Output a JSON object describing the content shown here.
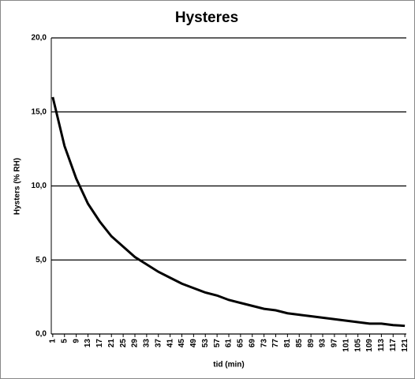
{
  "chart_data": {
    "type": "line",
    "title": "Hysteres",
    "xlabel": "tid (min)",
    "ylabel": "Hysters  (% RH)",
    "x": [
      1,
      5,
      9,
      13,
      17,
      21,
      25,
      29,
      33,
      37,
      41,
      45,
      49,
      53,
      57,
      61,
      65,
      69,
      73,
      77,
      81,
      85,
      89,
      93,
      97,
      101,
      105,
      109,
      113,
      117,
      121
    ],
    "series": [
      {
        "name": "Hysteres",
        "color": "#000000",
        "values": [
          16,
          12.7,
          10.5,
          8.8,
          7.6,
          6.6,
          5.9,
          5.2,
          4.7,
          4.2,
          3.8,
          3.4,
          3.1,
          2.8,
          2.6,
          2.3,
          2.1,
          1.9,
          1.7,
          1.6,
          1.4,
          1.3,
          1.2,
          1.1,
          1.0,
          0.9,
          0.8,
          0.7,
          0.7,
          0.6,
          0.55
        ]
      }
    ],
    "xlim": [
      0.5,
      121.5
    ],
    "xticks": [
      1,
      5,
      9,
      13,
      17,
      21,
      25,
      29,
      33,
      37,
      41,
      45,
      49,
      53,
      57,
      61,
      65,
      69,
      73,
      77,
      81,
      85,
      89,
      93,
      97,
      101,
      105,
      109,
      113,
      117,
      121
    ],
    "ylim": [
      0,
      20
    ],
    "yticks": [
      {
        "value": 0,
        "label": "0,0"
      },
      {
        "value": 5,
        "label": "5,0"
      },
      {
        "value": 10,
        "label": "10,0"
      },
      {
        "value": 15,
        "label": "15,0"
      },
      {
        "value": 20,
        "label": "20,0"
      }
    ],
    "grid": true
  }
}
